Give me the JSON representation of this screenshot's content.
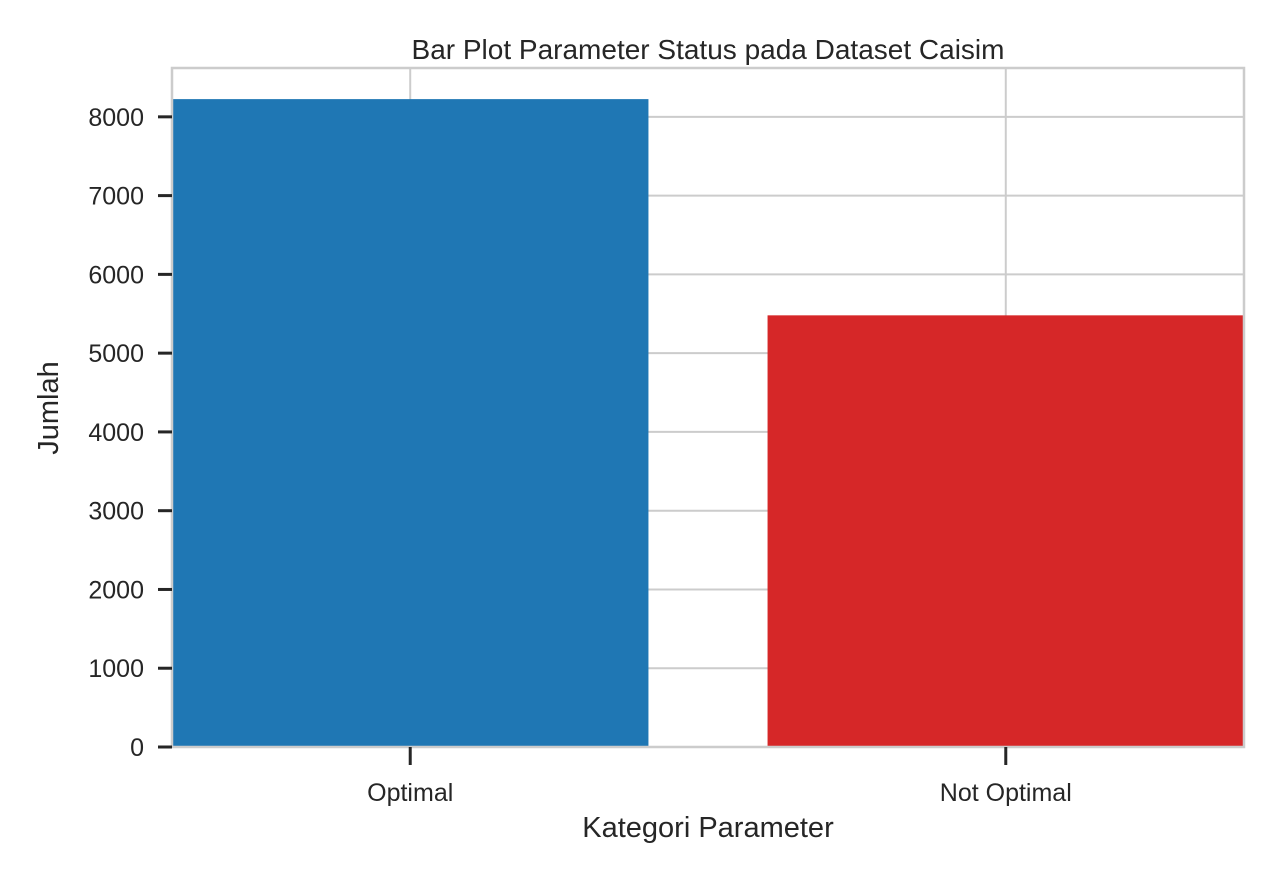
{
  "chart_data": {
    "type": "bar",
    "title": "Bar Plot Parameter Status pada Dataset Caisim",
    "xlabel": "Kategori Parameter",
    "ylabel": "Jumlah",
    "categories": [
      "Optimal",
      "Not Optimal"
    ],
    "values": [
      8225,
      5480
    ],
    "colors": [
      "#1f77b4",
      "#d62728"
    ],
    "ylim": [
      0,
      8620
    ],
    "yticks": [
      0,
      1000,
      2000,
      3000,
      4000,
      5000,
      6000,
      7000,
      8000
    ],
    "grid": true,
    "legend": "none"
  }
}
